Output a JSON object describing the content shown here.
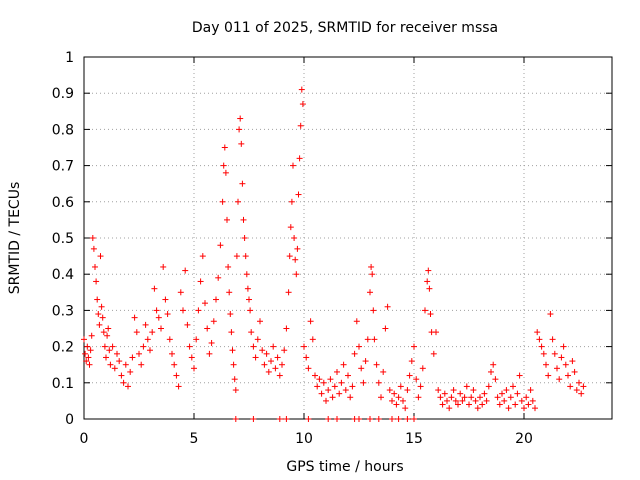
{
  "chart_data": {
    "type": "scatter",
    "title": "Day 011 of 2025, SRMTID for receiver mssa",
    "xlabel": "GPS time / hours",
    "ylabel": "SRMTID / TECUs",
    "xlim": [
      0,
      24
    ],
    "ylim": [
      0,
      1
    ],
    "xticks": [
      0,
      5,
      10,
      15,
      20
    ],
    "xtick_labels": [
      "0",
      "5",
      "10",
      "15",
      "20"
    ],
    "yticks": [
      0,
      0.1,
      0.2,
      0.3,
      0.4,
      0.5,
      0.6,
      0.7,
      0.8,
      0.9,
      1
    ],
    "ytick_labels": [
      "0",
      "0.1",
      "0.2",
      "0.3",
      "0.4",
      "0.5",
      "0.6",
      "0.7",
      "0.8",
      "0.9",
      "1"
    ],
    "grid": true,
    "marker": "+",
    "color": "#ff0000",
    "series": [
      {
        "name": "SRMTID",
        "points": [
          [
            0.0,
            0.22
          ],
          [
            0.05,
            0.18
          ],
          [
            0.1,
            0.16
          ],
          [
            0.15,
            0.2
          ],
          [
            0.2,
            0.17
          ],
          [
            0.25,
            0.15
          ],
          [
            0.3,
            0.19
          ],
          [
            0.35,
            0.23
          ],
          [
            0.4,
            0.5
          ],
          [
            0.45,
            0.47
          ],
          [
            0.5,
            0.42
          ],
          [
            0.55,
            0.38
          ],
          [
            0.6,
            0.33
          ],
          [
            0.65,
            0.29
          ],
          [
            0.7,
            0.26
          ],
          [
            0.75,
            0.45
          ],
          [
            0.8,
            0.31
          ],
          [
            0.85,
            0.28
          ],
          [
            0.9,
            0.24
          ],
          [
            0.95,
            0.2
          ],
          [
            1.0,
            0.17
          ],
          [
            1.05,
            0.23
          ],
          [
            1.1,
            0.25
          ],
          [
            1.15,
            0.19
          ],
          [
            1.2,
            0.15
          ],
          [
            1.3,
            0.2
          ],
          [
            1.4,
            0.14
          ],
          [
            1.5,
            0.18
          ],
          [
            1.6,
            0.16
          ],
          [
            1.7,
            0.12
          ],
          [
            1.8,
            0.1
          ],
          [
            1.9,
            0.15
          ],
          [
            2.0,
            0.09
          ],
          [
            2.1,
            0.13
          ],
          [
            2.2,
            0.17
          ],
          [
            2.3,
            0.28
          ],
          [
            2.4,
            0.24
          ],
          [
            2.5,
            0.18
          ],
          [
            2.6,
            0.15
          ],
          [
            2.7,
            0.2
          ],
          [
            2.8,
            0.26
          ],
          [
            2.9,
            0.22
          ],
          [
            3.0,
            0.19
          ],
          [
            3.1,
            0.24
          ],
          [
            3.2,
            0.36
          ],
          [
            3.3,
            0.3
          ],
          [
            3.4,
            0.28
          ],
          [
            3.5,
            0.25
          ],
          [
            3.6,
            0.42
          ],
          [
            3.7,
            0.33
          ],
          [
            3.8,
            0.29
          ],
          [
            3.9,
            0.22
          ],
          [
            4.0,
            0.18
          ],
          [
            4.1,
            0.15
          ],
          [
            4.2,
            0.12
          ],
          [
            4.3,
            0.09
          ],
          [
            4.4,
            0.35
          ],
          [
            4.5,
            0.3
          ],
          [
            4.6,
            0.41
          ],
          [
            4.7,
            0.26
          ],
          [
            4.8,
            0.2
          ],
          [
            4.9,
            0.17
          ],
          [
            5.0,
            0.14
          ],
          [
            5.1,
            0.22
          ],
          [
            5.2,
            0.3
          ],
          [
            5.3,
            0.38
          ],
          [
            5.4,
            0.45
          ],
          [
            5.5,
            0.32
          ],
          [
            5.6,
            0.25
          ],
          [
            5.7,
            0.18
          ],
          [
            5.8,
            0.21
          ],
          [
            5.9,
            0.27
          ],
          [
            6.0,
            0.33
          ],
          [
            6.1,
            0.39
          ],
          [
            6.2,
            0.48
          ],
          [
            6.3,
            0.6
          ],
          [
            6.35,
            0.7
          ],
          [
            6.4,
            0.75
          ],
          [
            6.45,
            0.68
          ],
          [
            6.5,
            0.55
          ],
          [
            6.55,
            0.42
          ],
          [
            6.6,
            0.35
          ],
          [
            6.65,
            0.29
          ],
          [
            6.7,
            0.24
          ],
          [
            6.75,
            0.19
          ],
          [
            6.8,
            0.15
          ],
          [
            6.85,
            0.11
          ],
          [
            6.9,
            0.08
          ],
          [
            6.95,
            0.45
          ],
          [
            7.0,
            0.6
          ],
          [
            7.05,
            0.8
          ],
          [
            7.1,
            0.83
          ],
          [
            7.15,
            0.76
          ],
          [
            7.2,
            0.65
          ],
          [
            7.25,
            0.55
          ],
          [
            7.3,
            0.5
          ],
          [
            7.35,
            0.45
          ],
          [
            7.4,
            0.4
          ],
          [
            7.45,
            0.36
          ],
          [
            7.5,
            0.33
          ],
          [
            7.55,
            0.3
          ],
          [
            7.6,
            0.24
          ],
          [
            7.7,
            0.2
          ],
          [
            7.8,
            0.17
          ],
          [
            7.9,
            0.22
          ],
          [
            8.0,
            0.27
          ],
          [
            8.1,
            0.19
          ],
          [
            8.2,
            0.15
          ],
          [
            8.3,
            0.18
          ],
          [
            8.4,
            0.13
          ],
          [
            8.5,
            0.16
          ],
          [
            8.6,
            0.2
          ],
          [
            8.7,
            0.14
          ],
          [
            8.8,
            0.17
          ],
          [
            8.9,
            0.12
          ],
          [
            9.0,
            0.15
          ],
          [
            9.1,
            0.19
          ],
          [
            9.2,
            0.25
          ],
          [
            9.3,
            0.35
          ],
          [
            9.35,
            0.45
          ],
          [
            9.4,
            0.53
          ],
          [
            9.45,
            0.6
          ],
          [
            9.5,
            0.7
          ],
          [
            9.55,
            0.5
          ],
          [
            9.6,
            0.44
          ],
          [
            9.65,
            0.4
          ],
          [
            9.7,
            0.47
          ],
          [
            9.75,
            0.62
          ],
          [
            9.8,
            0.72
          ],
          [
            9.85,
            0.81
          ],
          [
            9.9,
            0.91
          ],
          [
            9.95,
            0.87
          ],
          [
            10.0,
            0.2
          ],
          [
            10.1,
            0.17
          ],
          [
            10.2,
            0.14
          ],
          [
            10.3,
            0.27
          ],
          [
            10.4,
            0.22
          ],
          [
            10.5,
            0.12
          ],
          [
            10.6,
            0.09
          ],
          [
            10.7,
            0.11
          ],
          [
            10.8,
            0.07
          ],
          [
            10.9,
            0.1
          ],
          [
            11.0,
            0.05
          ],
          [
            11.1,
            0.08
          ],
          [
            11.2,
            0.11
          ],
          [
            11.3,
            0.06
          ],
          [
            11.4,
            0.09
          ],
          [
            11.5,
            0.13
          ],
          [
            11.6,
            0.07
          ],
          [
            11.7,
            0.1
          ],
          [
            11.8,
            0.15
          ],
          [
            11.9,
            0.08
          ],
          [
            12.0,
            0.12
          ],
          [
            12.1,
            0.06
          ],
          [
            12.2,
            0.09
          ],
          [
            12.3,
            0.18
          ],
          [
            12.4,
            0.27
          ],
          [
            12.5,
            0.2
          ],
          [
            12.6,
            0.14
          ],
          [
            12.7,
            0.1
          ],
          [
            12.8,
            0.16
          ],
          [
            12.9,
            0.22
          ],
          [
            13.0,
            0.35
          ],
          [
            13.05,
            0.42
          ],
          [
            13.1,
            0.4
          ],
          [
            13.15,
            0.3
          ],
          [
            13.2,
            0.22
          ],
          [
            13.3,
            0.15
          ],
          [
            13.4,
            0.1
          ],
          [
            13.5,
            0.06
          ],
          [
            13.6,
            0.13
          ],
          [
            13.7,
            0.25
          ],
          [
            13.8,
            0.31
          ],
          [
            13.9,
            0.08
          ],
          [
            14.0,
            0.05
          ],
          [
            14.1,
            0.07
          ],
          [
            14.2,
            0.04
          ],
          [
            14.3,
            0.06
          ],
          [
            14.4,
            0.09
          ],
          [
            14.5,
            0.05
          ],
          [
            14.6,
            0.03
          ],
          [
            14.7,
            0.08
          ],
          [
            14.8,
            0.12
          ],
          [
            14.9,
            0.16
          ],
          [
            15.0,
            0.2
          ],
          [
            15.1,
            0.11
          ],
          [
            15.2,
            0.06
          ],
          [
            15.3,
            0.09
          ],
          [
            15.4,
            0.14
          ],
          [
            15.5,
            0.3
          ],
          [
            15.6,
            0.38
          ],
          [
            15.65,
            0.41
          ],
          [
            15.7,
            0.36
          ],
          [
            15.75,
            0.29
          ],
          [
            15.8,
            0.24
          ],
          [
            15.9,
            0.18
          ],
          [
            16.0,
            0.24
          ],
          [
            16.1,
            0.08
          ],
          [
            16.2,
            0.06
          ],
          [
            16.3,
            0.04
          ],
          [
            16.4,
            0.07
          ],
          [
            16.5,
            0.05
          ],
          [
            16.6,
            0.03
          ],
          [
            16.7,
            0.06
          ],
          [
            16.8,
            0.08
          ],
          [
            16.9,
            0.05
          ],
          [
            17.0,
            0.04
          ],
          [
            17.1,
            0.07
          ],
          [
            17.2,
            0.05
          ],
          [
            17.3,
            0.06
          ],
          [
            17.4,
            0.09
          ],
          [
            17.5,
            0.04
          ],
          [
            17.6,
            0.06
          ],
          [
            17.7,
            0.08
          ],
          [
            17.8,
            0.05
          ],
          [
            17.9,
            0.03
          ],
          [
            18.0,
            0.06
          ],
          [
            18.1,
            0.04
          ],
          [
            18.2,
            0.07
          ],
          [
            18.3,
            0.05
          ],
          [
            18.4,
            0.09
          ],
          [
            18.5,
            0.13
          ],
          [
            18.6,
            0.15
          ],
          [
            18.7,
            0.11
          ],
          [
            18.8,
            0.06
          ],
          [
            18.9,
            0.04
          ],
          [
            19.0,
            0.07
          ],
          [
            19.1,
            0.05
          ],
          [
            19.2,
            0.08
          ],
          [
            19.3,
            0.03
          ],
          [
            19.4,
            0.06
          ],
          [
            19.5,
            0.09
          ],
          [
            19.6,
            0.04
          ],
          [
            19.7,
            0.07
          ],
          [
            19.8,
            0.12
          ],
          [
            19.9,
            0.05
          ],
          [
            20.0,
            0.03
          ],
          [
            20.1,
            0.06
          ],
          [
            20.2,
            0.04
          ],
          [
            20.3,
            0.08
          ],
          [
            20.4,
            0.05
          ],
          [
            20.5,
            0.03
          ],
          [
            20.6,
            0.24
          ],
          [
            20.7,
            0.22
          ],
          [
            20.8,
            0.2
          ],
          [
            20.9,
            0.18
          ],
          [
            21.0,
            0.15
          ],
          [
            21.1,
            0.12
          ],
          [
            21.2,
            0.29
          ],
          [
            21.3,
            0.22
          ],
          [
            21.4,
            0.18
          ],
          [
            21.5,
            0.14
          ],
          [
            21.6,
            0.11
          ],
          [
            21.7,
            0.17
          ],
          [
            21.8,
            0.2
          ],
          [
            21.9,
            0.15
          ],
          [
            22.0,
            0.12
          ],
          [
            22.1,
            0.09
          ],
          [
            22.2,
            0.16
          ],
          [
            22.3,
            0.13
          ],
          [
            22.4,
            0.08
          ],
          [
            22.5,
            0.1
          ],
          [
            22.6,
            0.07
          ],
          [
            22.7,
            0.09
          ],
          [
            6.9,
            0.0
          ],
          [
            7.7,
            0.0
          ],
          [
            8.9,
            0.0
          ],
          [
            9.2,
            0.0
          ],
          [
            10.2,
            0.0
          ],
          [
            11.1,
            0.0
          ],
          [
            11.5,
            0.0
          ],
          [
            12.3,
            0.0
          ],
          [
            12.5,
            0.0
          ],
          [
            13.0,
            0.0
          ],
          [
            13.4,
            0.0
          ],
          [
            14.0,
            0.0
          ],
          [
            14.3,
            0.0
          ],
          [
            14.7,
            0.0
          ],
          [
            15.0,
            0.0
          ]
        ]
      }
    ]
  }
}
